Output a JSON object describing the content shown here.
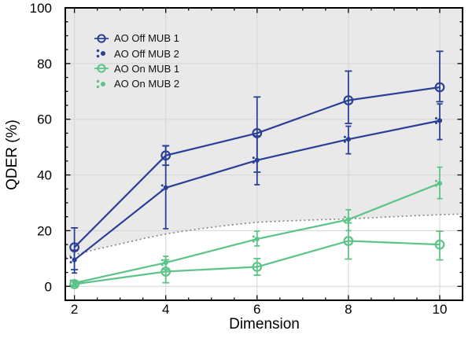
{
  "chart_data": {
    "type": "line",
    "title": "",
    "xlabel": "Dimension",
    "ylabel": "QDER (%)",
    "xlim": [
      1.8,
      10.5
    ],
    "ylim": [
      -5,
      100
    ],
    "x": [
      2,
      4,
      6,
      8,
      10
    ],
    "x_major_ticks": [
      2,
      4,
      6,
      8,
      10
    ],
    "x_minor_step": 0.5,
    "y_major_ticks": [
      0,
      20,
      40,
      60,
      80,
      100
    ],
    "y_minor_step": 5,
    "grid": true,
    "grid_color": "#d5d5d5",
    "axis_color": "#000000",
    "legend_position": "upper-left",
    "series": [
      {
        "name": "AO Off MUB 1",
        "color": "#2b4095",
        "marker": "open-circle",
        "values": [
          14,
          47,
          55,
          66.8,
          71.5
        ],
        "err_low": [
          6,
          43.5,
          41,
          58.5,
          66.3
        ],
        "err_high": [
          21,
          50.5,
          68,
          77.3,
          84.4
        ]
      },
      {
        "name": "AO Off MUB 2",
        "color": "#2b4095",
        "marker": "dot-cluster",
        "values": [
          9.5,
          35.4,
          45.3,
          52.8,
          59.5
        ],
        "err_low": [
          4.8,
          20.7,
          36.5,
          47.6,
          52.7
        ],
        "err_high": [
          13,
          50.4,
          54,
          57.5,
          65.5
        ]
      },
      {
        "name": "AO On MUB 1",
        "color": "#5cc488",
        "marker": "open-circle",
        "values": [
          0.8,
          5.3,
          7,
          16.3,
          15
        ],
        "err_low": [
          0,
          1.3,
          4,
          9.8,
          9.5
        ],
        "err_high": [
          2,
          9.5,
          10,
          22.8,
          19.8
        ]
      },
      {
        "name": "AO On MUB 2",
        "color": "#5cc488",
        "marker": "dot-cluster",
        "values": [
          1.2,
          8.5,
          17,
          24,
          37
        ],
        "err_low": [
          0.4,
          6,
          14.5,
          20,
          31.5
        ],
        "err_high": [
          2.1,
          10.8,
          19.8,
          27.5,
          42.8
        ]
      }
    ],
    "threshold_line": {
      "style": "dotted",
      "color": "#8a8a8a",
      "points": [
        [
          1.8,
          10.5
        ],
        [
          2,
          11.3
        ],
        [
          2.5,
          13.4
        ],
        [
          3,
          15.2
        ],
        [
          3.5,
          17.1
        ],
        [
          4,
          18.8
        ],
        [
          4.5,
          20.1
        ],
        [
          5,
          21.2
        ],
        [
          5.5,
          22.2
        ],
        [
          6,
          23.0
        ],
        [
          6.5,
          23.4
        ],
        [
          7,
          23.7
        ],
        [
          7.5,
          24.0
        ],
        [
          8,
          24.2
        ],
        [
          8.5,
          24.6
        ],
        [
          9,
          25.0
        ],
        [
          9.5,
          25.4
        ],
        [
          10,
          25.7
        ],
        [
          10.5,
          26.0
        ]
      ]
    },
    "shaded_region": {
      "fill": "#e9e9e9",
      "description": "region above security threshold line"
    }
  }
}
